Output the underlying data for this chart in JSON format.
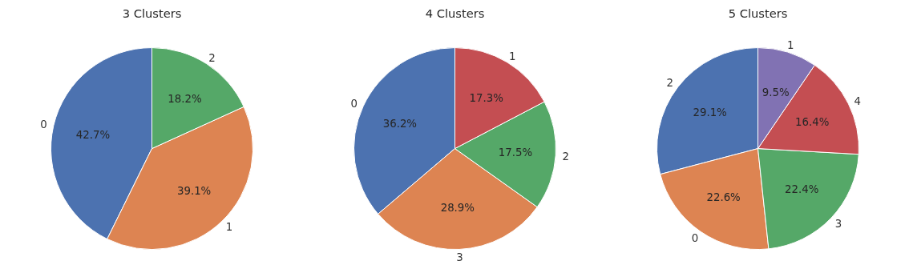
{
  "chart_data": [
    {
      "type": "pie",
      "title": "3 Clusters",
      "categories": [
        "0",
        "1",
        "2"
      ],
      "values": [
        42.7,
        39.1,
        18.2
      ],
      "colors": [
        "#4c72b0",
        "#dd8452",
        "#55a868"
      ],
      "value_labels": [
        "42.7%",
        "39.1%",
        "18.2%"
      ],
      "legend": false
    },
    {
      "type": "pie",
      "title": "4 Clusters",
      "categories": [
        "0",
        "3",
        "2",
        "1"
      ],
      "values": [
        36.2,
        28.9,
        17.5,
        17.3
      ],
      "colors": [
        "#4c72b0",
        "#dd8452",
        "#55a868",
        "#c44e52"
      ],
      "value_labels": [
        "36.2%",
        "28.9%",
        "17.5%",
        "17.3%"
      ],
      "legend": false
    },
    {
      "type": "pie",
      "title": "5 Clusters",
      "categories": [
        "2",
        "0",
        "3",
        "4",
        "1"
      ],
      "values": [
        29.1,
        22.6,
        22.4,
        16.4,
        9.5
      ],
      "colors": [
        "#4c72b0",
        "#dd8452",
        "#55a868",
        "#c44e52",
        "#8172b3"
      ],
      "value_labels": [
        "29.1%",
        "22.6%",
        "22.4%",
        "16.4%",
        "9.5%"
      ],
      "legend": false
    }
  ]
}
